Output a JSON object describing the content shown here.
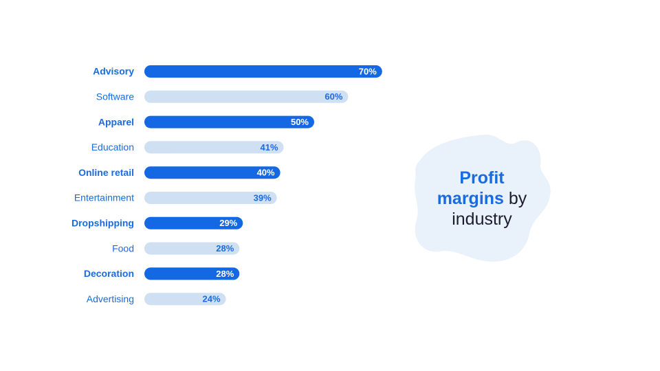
{
  "chart_data": {
    "type": "bar",
    "orientation": "horizontal",
    "title": [
      {
        "text": "Profit",
        "color": "#1a6be0",
        "bold": true
      },
      {
        "text": "margins",
        "color": "#1a6be0",
        "bold": true
      },
      {
        "text": "by",
        "color": "#1c1c2e",
        "bold": false
      },
      {
        "text": "industry",
        "color": "#1c1c2e",
        "bold": false
      }
    ],
    "categories": [
      "Advisory",
      "Software",
      "Apparel",
      "Education",
      "Online retail",
      "Entertainment",
      "Dropshipping",
      "Food",
      "Decoration",
      "Advertising"
    ],
    "values": [
      70,
      60,
      50,
      41,
      40,
      39,
      29,
      28,
      28,
      24
    ],
    "value_labels": [
      "70%",
      "60%",
      "50%",
      "41%",
      "40%",
      "39%",
      "29%",
      "28%",
      "28%",
      "24%"
    ],
    "colors": [
      "#1468e3",
      "#cfe0f3",
      "#1468e3",
      "#cfe0f3",
      "#1468e3",
      "#cfe0f3",
      "#1468e3",
      "#cfe0f3",
      "#1468e3",
      "#cfe0f3"
    ]
  }
}
